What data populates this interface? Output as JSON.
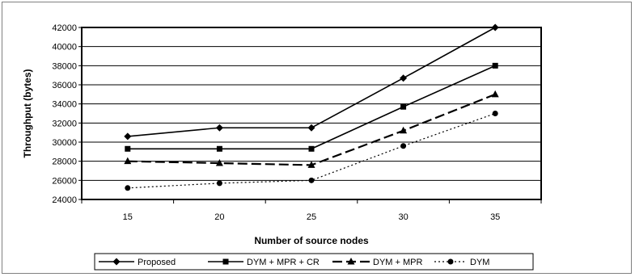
{
  "chart_data": {
    "type": "line",
    "title": "",
    "xlabel": "Number of source nodes",
    "ylabel": "Throughput (bytes)",
    "x": [
      15,
      20,
      25,
      30,
      35
    ],
    "x_tick_labels": [
      "15",
      "20",
      "25",
      "30",
      "35"
    ],
    "ylim": [
      24000,
      42000
    ],
    "y_ticks": [
      24000,
      26000,
      28000,
      30000,
      32000,
      34000,
      36000,
      38000,
      40000,
      42000
    ],
    "y_tick_labels": [
      "24000",
      "26000",
      "28000",
      "30000",
      "32000",
      "34000",
      "36000",
      "38000",
      "40000",
      "42000"
    ],
    "grid": "horizontal",
    "legend_position": "bottom",
    "series": [
      {
        "name": "Proposed",
        "marker": "diamond",
        "dash": "solid",
        "values": [
          30600,
          31500,
          31500,
          36700,
          42000
        ]
      },
      {
        "name": "DYM + MPR + CR",
        "marker": "square",
        "dash": "solid",
        "values": [
          29300,
          29300,
          29300,
          33700,
          38000
        ]
      },
      {
        "name": "DYM + MPR",
        "marker": "triangle",
        "dash": "long-dash",
        "values": [
          28000,
          27800,
          27600,
          31200,
          35000
        ]
      },
      {
        "name": "DYM",
        "marker": "circle",
        "dash": "dotted",
        "values": [
          25200,
          25700,
          26000,
          29600,
          33000
        ]
      }
    ],
    "colors": {
      "line": "#000000",
      "grid": "#000000",
      "background": "#ffffff"
    }
  }
}
